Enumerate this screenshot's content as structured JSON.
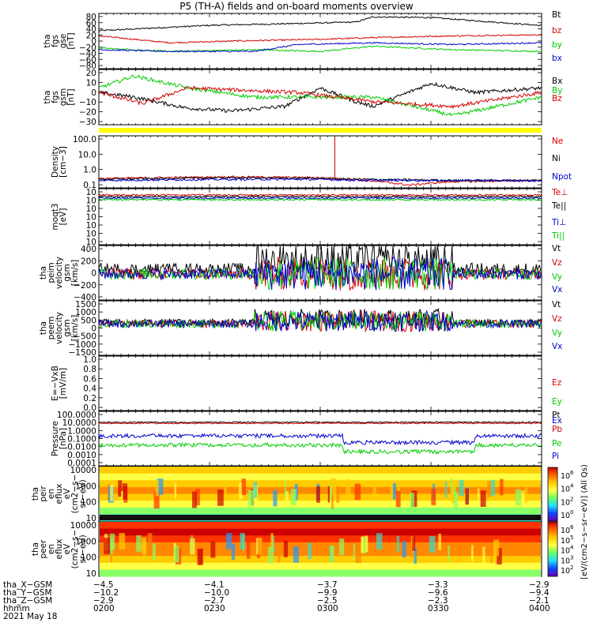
{
  "title": "P5 (TH-A) fields and on-board moments overview",
  "colors": {
    "black": "#000000",
    "red": "#d40000",
    "green": "#00cc00",
    "blue": "#0000cc",
    "yellow": "#ffff00"
  },
  "chart_data": [
    {
      "type": "line",
      "ylabel": [
        "tha",
        "fgs",
        "gse",
        "[nT]"
      ],
      "yticks": [
        "80",
        "60",
        "40",
        "20",
        "0",
        "−20",
        "−40",
        "−60",
        "−80"
      ],
      "ylim": [
        -80,
        80
      ],
      "series": [
        {
          "name": "Bt",
          "color": "black",
          "levels": [
            [
              0,
              30
            ],
            [
              0.16,
              40
            ],
            [
              0.26,
              46
            ],
            [
              0.42,
              50
            ],
            [
              0.58,
              55
            ],
            [
              0.62,
              70
            ],
            [
              0.75,
              68
            ],
            [
              1,
              45
            ]
          ]
        },
        {
          "name": "bz",
          "color": "red",
          "levels": [
            [
              0,
              15
            ],
            [
              0.16,
              -5
            ],
            [
              0.3,
              0
            ],
            [
              0.5,
              5
            ],
            [
              0.62,
              10
            ],
            [
              0.8,
              15
            ],
            [
              1,
              18
            ]
          ]
        },
        {
          "name": "by",
          "color": "green",
          "levels": [
            [
              0,
              -20
            ],
            [
              0.16,
              -30
            ],
            [
              0.35,
              -25
            ],
            [
              0.5,
              -30
            ],
            [
              0.62,
              -15
            ],
            [
              0.8,
              -25
            ],
            [
              1,
              -30
            ]
          ]
        },
        {
          "name": "bx",
          "color": "blue",
          "levels": [
            [
              0,
              -25
            ],
            [
              0.16,
              -30
            ],
            [
              0.35,
              -30
            ],
            [
              0.45,
              -10
            ],
            [
              0.62,
              -5
            ],
            [
              0.8,
              -10
            ],
            [
              1,
              -5
            ]
          ]
        }
      ]
    },
    {
      "type": "line",
      "ylabel": [
        "tha",
        "fgs",
        "gsm",
        "[nT]"
      ],
      "yticks": [
        "20",
        "10",
        "0",
        "−10",
        "−20",
        "−30"
      ],
      "ylim": [
        -35,
        25
      ],
      "series": [
        {
          "name": "Bx",
          "color": "black",
          "levels": [
            [
              0,
              0
            ],
            [
              0.08,
              -5
            ],
            [
              0.2,
              -17
            ],
            [
              0.3,
              -20
            ],
            [
              0.42,
              -15
            ],
            [
              0.5,
              5
            ],
            [
              0.58,
              -10
            ],
            [
              0.62,
              -15
            ],
            [
              0.75,
              10
            ],
            [
              0.85,
              0
            ],
            [
              1,
              5
            ]
          ]
        },
        {
          "name": "By",
          "color": "green",
          "levels": [
            [
              0,
              5
            ],
            [
              0.08,
              18
            ],
            [
              0.2,
              5
            ],
            [
              0.35,
              -5
            ],
            [
              0.5,
              -5
            ],
            [
              0.62,
              -5
            ],
            [
              0.8,
              -25
            ],
            [
              1,
              -5
            ]
          ]
        },
        {
          "name": "Bz",
          "color": "red",
          "levels": [
            [
              0,
              0
            ],
            [
              0.1,
              -12
            ],
            [
              0.2,
              5
            ],
            [
              0.45,
              0
            ],
            [
              0.62,
              -10
            ],
            [
              0.8,
              -15
            ],
            [
              1,
              0
            ]
          ]
        }
      ]
    },
    {
      "type": "line",
      "ylabel": [
        "Density",
        "[cm−3]"
      ],
      "yticks": [
        "100.0",
        "10.0",
        "1.0",
        "0.1"
      ],
      "ylim": [
        0.1,
        200
      ],
      "scale": "log",
      "series": [
        {
          "name": "Ne",
          "color": "red",
          "levels": [
            [
              0,
              0.4
            ],
            [
              0.3,
              0.5
            ],
            [
              0.5,
              0.45
            ],
            [
              0.6,
              0.3
            ],
            [
              0.7,
              0.15
            ],
            [
              0.8,
              0.25
            ],
            [
              1,
              0.3
            ]
          ]
        },
        {
          "name": "Ni",
          "color": "black",
          "levels": [
            [
              0,
              0.35
            ],
            [
              0.3,
              0.45
            ],
            [
              0.5,
              0.4
            ],
            [
              0.6,
              0.35
            ],
            [
              0.8,
              0.3
            ],
            [
              1,
              0.3
            ]
          ]
        },
        {
          "name": "Npot",
          "color": "blue",
          "levels": [
            [
              0,
              0.3
            ],
            [
              0.3,
              0.35
            ],
            [
              0.5,
              0.35
            ],
            [
              0.6,
              0.3
            ],
            [
              0.8,
              0.3
            ],
            [
              1,
              0.28
            ]
          ]
        }
      ]
    },
    {
      "type": "line",
      "ylabel": [
        "moqt3",
        "[eV]"
      ],
      "yticks": [
        "10",
        "10",
        "10",
        "10",
        "10",
        "10",
        "10"
      ],
      "series": [
        {
          "name": "Te⊥",
          "color": "red"
        },
        {
          "name": "Te||",
          "color": "black"
        },
        {
          "name": "Ti⊥",
          "color": "blue"
        },
        {
          "name": "Ti||",
          "color": "green"
        }
      ]
    },
    {
      "type": "line",
      "ylabel": [
        "tha",
        "peim",
        "velocity",
        "gsm",
        "[km/s]"
      ],
      "yticks": [
        "400",
        "200",
        "0",
        "−200",
        "−400"
      ],
      "ylim": [
        -400,
        400
      ],
      "series": [
        {
          "name": "Vt",
          "color": "black"
        },
        {
          "name": "Vz",
          "color": "red"
        },
        {
          "name": "Vy",
          "color": "green"
        },
        {
          "name": "Vx",
          "color": "blue"
        }
      ]
    },
    {
      "type": "line",
      "ylabel": [
        "tha",
        "peem",
        "velocity",
        "gsm",
        "[km/s]"
      ],
      "yticks": [
        "1500",
        "1000",
        "500",
        "0",
        "−500",
        "−1000",
        "−1500"
      ],
      "ylim": [
        -1500,
        1500
      ],
      "series": [
        {
          "name": "Vt",
          "color": "black"
        },
        {
          "name": "Vz",
          "color": "red"
        },
        {
          "name": "Vy",
          "color": "green"
        },
        {
          "name": "Vx",
          "color": "blue"
        }
      ]
    },
    {
      "type": "line",
      "ylabel": [
        "E=−VxB",
        "[mV/m]"
      ],
      "yticks": [
        "1.0",
        "0.8",
        "0.6",
        "0.4",
        "0.2",
        "0.0"
      ],
      "ylim": [
        0,
        1
      ],
      "series": [
        {
          "name": "Ez",
          "color": "red"
        },
        {
          "name": "Ey",
          "color": "green"
        },
        {
          "name": "Ex",
          "color": "blue"
        }
      ]
    },
    {
      "type": "line",
      "ylabel": [
        "Pressure",
        "[nPa]"
      ],
      "yticks": [
        "100.0000",
        "10.0000",
        "1.0000",
        "0.1000",
        "0.0100",
        "0.0010",
        "0.0001"
      ],
      "ylim": [
        0.0001,
        100
      ],
      "scale": "log",
      "series": [
        {
          "name": "Pt",
          "color": "black"
        },
        {
          "name": "Pb",
          "color": "red"
        },
        {
          "name": "Pe",
          "color": "green"
        },
        {
          "name": "Pi",
          "color": "blue"
        }
      ]
    },
    {
      "type": "heatmap",
      "ylabel": [
        "tha",
        "peir",
        "en",
        "eflux",
        "eV",
        "(cm2−s−",
        "sr−eV)"
      ],
      "yticks": [
        "10000",
        "1000",
        "100",
        "10"
      ],
      "ylim": [
        5,
        30000
      ],
      "scale": "log"
    },
    {
      "type": "heatmap",
      "ylabel": [
        "tha",
        "peer",
        "en",
        "eflux",
        "eV",
        "(cm2−s−",
        "sr−eV)"
      ],
      "yticks": [
        "10000",
        "1000",
        "100",
        "10"
      ],
      "ylim": [
        5,
        30000
      ],
      "scale": "log"
    }
  ],
  "colorbars": [
    {
      "ticks": [
        "10",
        "10",
        "10",
        "10"
      ],
      "exponents": [
        "6",
        "4",
        "2",
        "0"
      ]
    },
    {
      "ticks": [
        "10",
        "10",
        "10",
        "10",
        "10"
      ],
      "exponents": [
        "6",
        "5",
        "4",
        "3",
        "2"
      ]
    }
  ],
  "colorbar_label": "[eV/(cm2−s−sr−eV)] (All Qs)",
  "xaxis": {
    "rows": [
      {
        "label": "tha_X−GSM",
        "values": [
          "−4.5",
          "−4.1",
          "−3.7",
          "−3.3",
          "−2.9"
        ]
      },
      {
        "label": "tha_Y−GSM",
        "values": [
          "−10.2",
          "−10.0",
          "−9.9",
          "−9.6",
          "−9.4"
        ]
      },
      {
        "label": "tha_Z−GSM",
        "values": [
          "−2.9",
          "−2.7",
          "−2.5",
          "−2.3",
          "−2.1"
        ]
      },
      {
        "label": "hhmm",
        "values": [
          "0200",
          "0230",
          "0300",
          "0330",
          "0400"
        ]
      }
    ],
    "date": "2021 May 18"
  }
}
